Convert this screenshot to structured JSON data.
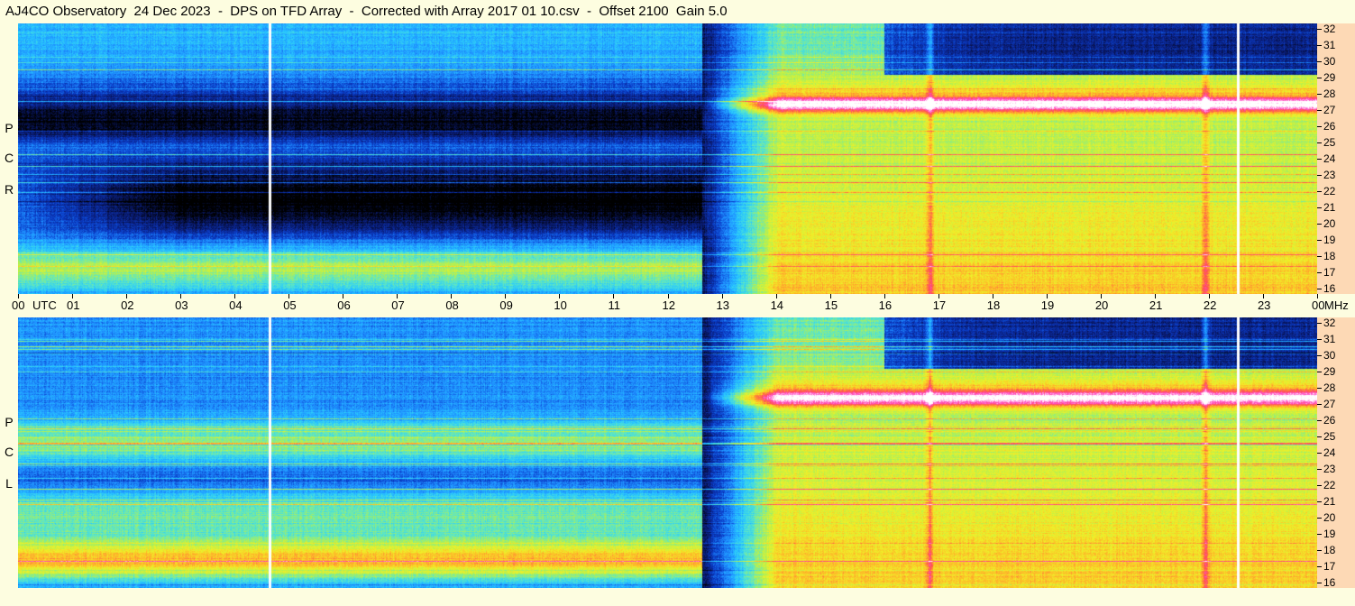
{
  "title": "AJ4CO Observatory  24 Dec 2023  -  DPS on TFD Array  -  Corrected with Array 2017 01 10.csv  -  Offset 2100  Gain 5.0",
  "chart_data": {
    "type": "heatmap",
    "panels": [
      {
        "name": "top",
        "label_letters": [
          "P",
          "C",
          "R"
        ]
      },
      {
        "name": "bottom",
        "label_letters": [
          "P",
          "C",
          "L"
        ]
      }
    ],
    "x": {
      "ticks": [
        "00",
        "01",
        "02",
        "03",
        "04",
        "05",
        "06",
        "07",
        "08",
        "09",
        "10",
        "11",
        "12",
        "13",
        "14",
        "15",
        "16",
        "17",
        "18",
        "19",
        "20",
        "21",
        "22",
        "23",
        "00"
      ],
      "unit": "UTC",
      "range": [
        0,
        24
      ]
    },
    "y": {
      "ticks": [
        "32",
        "31",
        "30",
        "29",
        "28",
        "27",
        "26",
        "25",
        "24",
        "23",
        "22",
        "21",
        "20",
        "19",
        "18",
        "17",
        "16"
      ],
      "unit": "MHz",
      "range": [
        16,
        32
      ]
    },
    "colorscale": [
      "#000000",
      "#0a1a6e",
      "#0a3cc8",
      "#1e8cff",
      "#28c8ff",
      "#5ae6c8",
      "#b4f050",
      "#f0f028",
      "#ffb428",
      "#ff5050",
      "#ff50c8",
      "#ffffff"
    ],
    "events": [
      {
        "name": "dropout",
        "utc_hour": 4.65
      },
      {
        "name": "dropout",
        "utc_hour": 22.55
      },
      {
        "name": "daylight_start",
        "utc_hour": 12.65
      },
      {
        "name": "interference",
        "utc_hour": 16.85
      },
      {
        "name": "interference",
        "utc_hour": 21.95
      }
    ]
  }
}
